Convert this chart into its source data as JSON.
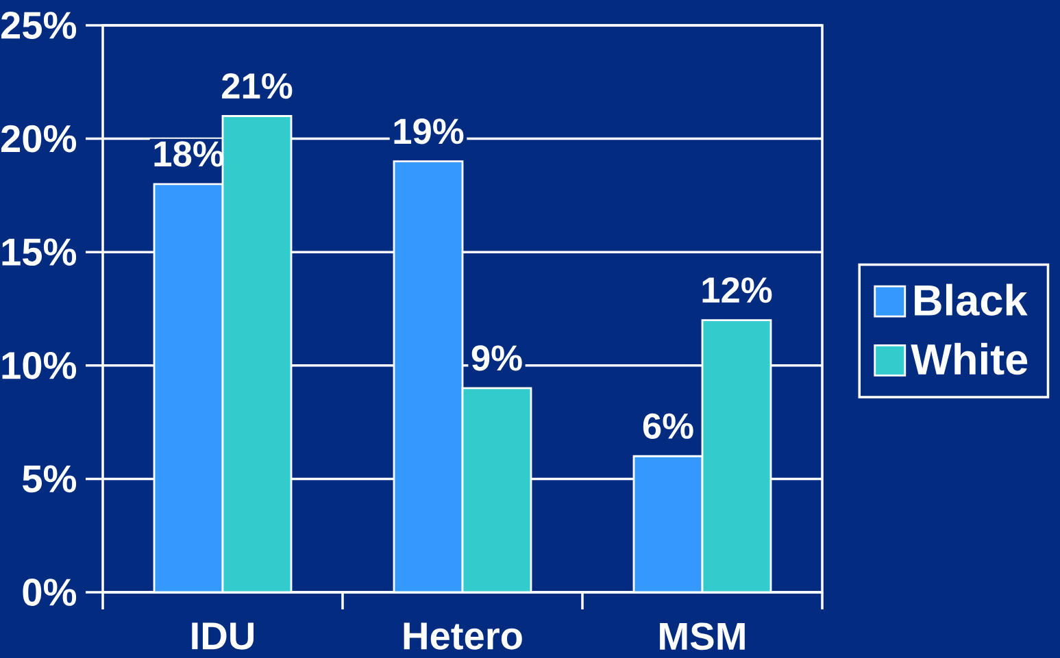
{
  "chart_data": {
    "type": "bar",
    "categories": [
      "IDU",
      "Hetero",
      "MSM"
    ],
    "series": [
      {
        "name": "Black",
        "color": "#3399ff",
        "values": [
          18,
          19,
          6
        ],
        "value_labels": [
          "18%",
          "19%",
          "6%"
        ]
      },
      {
        "name": "White",
        "color": "#33cccc",
        "values": [
          21,
          9,
          12
        ],
        "value_labels": [
          "21%",
          "9%",
          "12%"
        ]
      }
    ],
    "ylim": [
      0,
      25
    ],
    "yticks": [
      {
        "value": 0,
        "label": "0%"
      },
      {
        "value": 5,
        "label": "5%"
      },
      {
        "value": 10,
        "label": "10%"
      },
      {
        "value": 15,
        "label": "15%"
      },
      {
        "value": 20,
        "label": "20%"
      },
      {
        "value": 25,
        "label": "25%"
      }
    ],
    "grid": "y",
    "legend": "right"
  }
}
